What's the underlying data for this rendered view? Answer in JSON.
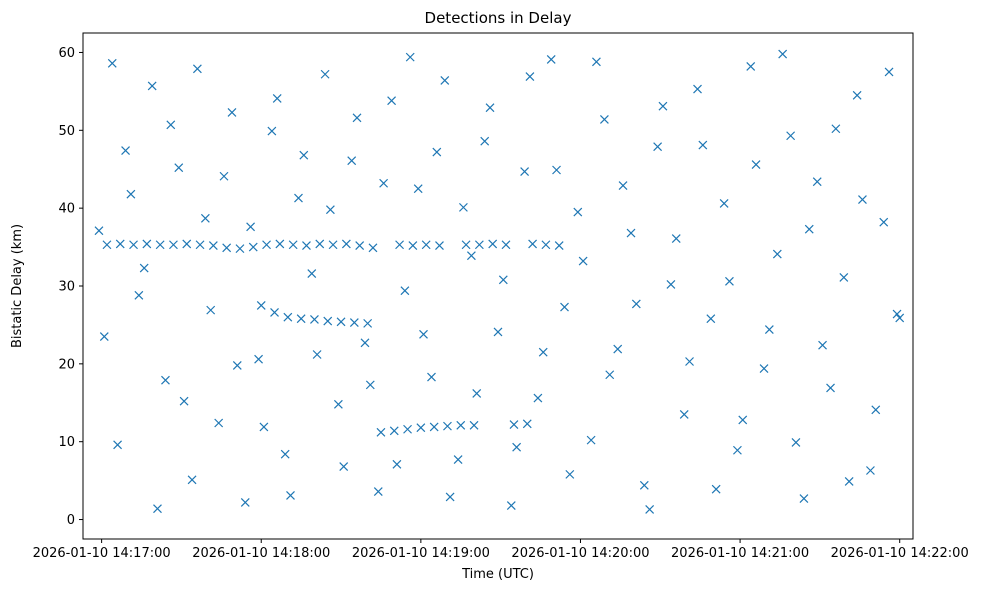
{
  "chart_data": {
    "type": "scatter",
    "title": "Detections in Delay",
    "xlabel": "Time (UTC)",
    "ylabel": "Bistatic Delay (km)",
    "x_tick_labels": [
      "2026-01-10 14:17:00",
      "2026-01-10 14:18:00",
      "2026-01-10 14:19:00",
      "2026-01-10 14:20:00",
      "2026-01-10 14:21:00",
      "2026-01-10 14:22:00"
    ],
    "xlim": [
      "2026-01-10 14:16:53",
      "2026-01-10 14:22:05"
    ],
    "y_ticks": [
      0,
      10,
      20,
      30,
      40,
      50,
      60
    ],
    "ylim": [
      -2.5,
      62.5
    ],
    "marker": "x",
    "marker_color": "#1f77b4",
    "grid": false,
    "series": [
      {
        "points": [
          [
            "2026-01-10 14:17:02",
            35.3
          ],
          [
            "2026-01-10 14:17:07",
            35.4
          ],
          [
            "2026-01-10 14:17:12",
            35.3
          ],
          [
            "2026-01-10 14:17:17",
            35.4
          ],
          [
            "2026-01-10 14:17:22",
            35.3
          ],
          [
            "2026-01-10 14:17:27",
            35.3
          ],
          [
            "2026-01-10 14:17:32",
            35.4
          ],
          [
            "2026-01-10 14:17:37",
            35.3
          ],
          [
            "2026-01-10 14:17:42",
            35.2
          ],
          [
            "2026-01-10 14:17:47",
            34.9
          ],
          [
            "2026-01-10 14:17:52",
            34.8
          ],
          [
            "2026-01-10 14:17:57",
            35.0
          ],
          [
            "2026-01-10 14:18:02",
            35.3
          ],
          [
            "2026-01-10 14:18:07",
            35.4
          ],
          [
            "2026-01-10 14:18:12",
            35.3
          ],
          [
            "2026-01-10 14:18:17",
            35.2
          ],
          [
            "2026-01-10 14:18:22",
            35.4
          ],
          [
            "2026-01-10 14:18:27",
            35.3
          ],
          [
            "2026-01-10 14:18:32",
            35.4
          ],
          [
            "2026-01-10 14:18:37",
            35.2
          ],
          [
            "2026-01-10 14:18:42",
            34.9
          ],
          [
            "2026-01-10 14:18:52",
            35.3
          ],
          [
            "2026-01-10 14:18:57",
            35.2
          ],
          [
            "2026-01-10 14:19:02",
            35.3
          ],
          [
            "2026-01-10 14:19:07",
            35.2
          ],
          [
            "2026-01-10 14:19:17",
            35.3
          ],
          [
            "2026-01-10 14:19:22",
            35.3
          ],
          [
            "2026-01-10 14:19:27",
            35.4
          ],
          [
            "2026-01-10 14:19:32",
            35.3
          ],
          [
            "2026-01-10 14:19:42",
            35.4
          ],
          [
            "2026-01-10 14:19:47",
            35.3
          ],
          [
            "2026-01-10 14:19:52",
            35.2
          ],
          [
            "2026-01-10 14:18:00",
            27.5
          ],
          [
            "2026-01-10 14:18:05",
            26.6
          ],
          [
            "2026-01-10 14:18:10",
            26.0
          ],
          [
            "2026-01-10 14:18:15",
            25.8
          ],
          [
            "2026-01-10 14:18:20",
            25.7
          ],
          [
            "2026-01-10 14:18:25",
            25.5
          ],
          [
            "2026-01-10 14:18:30",
            25.4
          ],
          [
            "2026-01-10 14:18:35",
            25.3
          ],
          [
            "2026-01-10 14:18:40",
            25.2
          ],
          [
            "2026-01-10 14:18:45",
            11.2
          ],
          [
            "2026-01-10 14:18:50",
            11.4
          ],
          [
            "2026-01-10 14:18:55",
            11.6
          ],
          [
            "2026-01-10 14:19:00",
            11.8
          ],
          [
            "2026-01-10 14:19:05",
            11.9
          ],
          [
            "2026-01-10 14:19:10",
            12.0
          ],
          [
            "2026-01-10 14:19:15",
            12.1
          ],
          [
            "2026-01-10 14:19:20",
            12.1
          ],
          [
            "2026-01-10 14:19:35",
            12.2
          ],
          [
            "2026-01-10 14:19:40",
            12.3
          ],
          [
            "2026-01-10 14:16:59",
            37.1
          ],
          [
            "2026-01-10 14:17:04",
            58.6
          ],
          [
            "2026-01-10 14:17:09",
            47.4
          ],
          [
            "2026-01-10 14:17:14",
            28.8
          ],
          [
            "2026-01-10 14:17:19",
            55.7
          ],
          [
            "2026-01-10 14:17:24",
            17.9
          ],
          [
            "2026-01-10 14:17:29",
            45.2
          ],
          [
            "2026-01-10 14:17:34",
            5.1
          ],
          [
            "2026-01-10 14:17:39",
            38.7
          ],
          [
            "2026-01-10 14:17:44",
            12.4
          ],
          [
            "2026-01-10 14:17:49",
            52.3
          ],
          [
            "2026-01-10 14:17:54",
            2.2
          ],
          [
            "2026-01-10 14:17:59",
            20.6
          ],
          [
            "2026-01-10 14:18:04",
            49.9
          ],
          [
            "2026-01-10 14:18:09",
            8.4
          ],
          [
            "2026-01-10 14:18:14",
            41.3
          ],
          [
            "2026-01-10 14:18:19",
            31.6
          ],
          [
            "2026-01-10 14:18:24",
            57.2
          ],
          [
            "2026-01-10 14:18:29",
            14.8
          ],
          [
            "2026-01-10 14:18:34",
            46.1
          ],
          [
            "2026-01-10 14:18:39",
            22.7
          ],
          [
            "2026-01-10 14:18:44",
            3.6
          ],
          [
            "2026-01-10 14:18:49",
            53.8
          ],
          [
            "2026-01-10 14:18:54",
            29.4
          ],
          [
            "2026-01-10 14:18:59",
            42.5
          ],
          [
            "2026-01-10 14:19:04",
            18.3
          ],
          [
            "2026-01-10 14:19:09",
            56.4
          ],
          [
            "2026-01-10 14:19:14",
            7.7
          ],
          [
            "2026-01-10 14:19:19",
            33.9
          ],
          [
            "2026-01-10 14:19:24",
            48.6
          ],
          [
            "2026-01-10 14:19:29",
            24.1
          ],
          [
            "2026-01-10 14:19:34",
            1.8
          ],
          [
            "2026-01-10 14:19:39",
            44.7
          ],
          [
            "2026-01-10 14:19:44",
            15.6
          ],
          [
            "2026-01-10 14:19:49",
            59.1
          ],
          [
            "2026-01-10 14:19:54",
            27.3
          ],
          [
            "2026-01-10 14:19:59",
            39.5
          ],
          [
            "2026-01-10 14:20:04",
            10.2
          ],
          [
            "2026-01-10 14:20:09",
            51.4
          ],
          [
            "2026-01-10 14:20:14",
            21.9
          ],
          [
            "2026-01-10 14:20:19",
            36.8
          ],
          [
            "2026-01-10 14:20:24",
            4.4
          ],
          [
            "2026-01-10 14:20:29",
            47.9
          ],
          [
            "2026-01-10 14:20:34",
            30.2
          ],
          [
            "2026-01-10 14:20:39",
            13.5
          ],
          [
            "2026-01-10 14:20:44",
            55.3
          ],
          [
            "2026-01-10 14:20:49",
            25.8
          ],
          [
            "2026-01-10 14:20:54",
            40.6
          ],
          [
            "2026-01-10 14:20:59",
            8.9
          ],
          [
            "2026-01-10 14:21:04",
            58.2
          ],
          [
            "2026-01-10 14:21:09",
            19.4
          ],
          [
            "2026-01-10 14:21:14",
            34.1
          ],
          [
            "2026-01-10 14:21:19",
            49.3
          ],
          [
            "2026-01-10 14:21:24",
            2.7
          ],
          [
            "2026-01-10 14:21:29",
            43.4
          ],
          [
            "2026-01-10 14:21:34",
            16.9
          ],
          [
            "2026-01-10 14:21:39",
            31.1
          ],
          [
            "2026-01-10 14:21:44",
            54.5
          ],
          [
            "2026-01-10 14:21:49",
            6.3
          ],
          [
            "2026-01-10 14:21:54",
            38.2
          ],
          [
            "2026-01-10 14:21:59",
            26.4
          ],
          [
            "2026-01-10 14:17:01",
            23.5
          ],
          [
            "2026-01-10 14:17:06",
            9.6
          ],
          [
            "2026-01-10 14:17:11",
            41.8
          ],
          [
            "2026-01-10 14:17:16",
            32.3
          ],
          [
            "2026-01-10 14:17:21",
            1.4
          ],
          [
            "2026-01-10 14:17:26",
            50.7
          ],
          [
            "2026-01-10 14:17:31",
            15.2
          ],
          [
            "2026-01-10 14:17:36",
            57.9
          ],
          [
            "2026-01-10 14:17:41",
            26.9
          ],
          [
            "2026-01-10 14:17:46",
            44.1
          ],
          [
            "2026-01-10 14:17:51",
            19.8
          ],
          [
            "2026-01-10 14:17:56",
            37.6
          ],
          [
            "2026-01-10 14:18:01",
            11.9
          ],
          [
            "2026-01-10 14:18:06",
            54.1
          ],
          [
            "2026-01-10 14:18:11",
            3.1
          ],
          [
            "2026-01-10 14:18:16",
            46.8
          ],
          [
            "2026-01-10 14:18:21",
            21.2
          ],
          [
            "2026-01-10 14:18:26",
            39.8
          ],
          [
            "2026-01-10 14:18:31",
            6.8
          ],
          [
            "2026-01-10 14:18:36",
            51.6
          ],
          [
            "2026-01-10 14:18:41",
            17.3
          ],
          [
            "2026-01-10 14:18:46",
            43.2
          ],
          [
            "2026-01-10 14:18:51",
            7.1
          ],
          [
            "2026-01-10 14:18:56",
            59.4
          ],
          [
            "2026-01-10 14:19:01",
            23.8
          ],
          [
            "2026-01-10 14:19:06",
            47.2
          ],
          [
            "2026-01-10 14:19:11",
            2.9
          ],
          [
            "2026-01-10 14:19:16",
            40.1
          ],
          [
            "2026-01-10 14:19:21",
            16.2
          ],
          [
            "2026-01-10 14:19:26",
            52.9
          ],
          [
            "2026-01-10 14:19:31",
            30.8
          ],
          [
            "2026-01-10 14:19:36",
            9.3
          ],
          [
            "2026-01-10 14:19:41",
            56.9
          ],
          [
            "2026-01-10 14:19:46",
            21.5
          ],
          [
            "2026-01-10 14:19:51",
            44.9
          ],
          [
            "2026-01-10 14:19:56",
            5.8
          ],
          [
            "2026-01-10 14:20:01",
            33.2
          ],
          [
            "2026-01-10 14:20:06",
            58.8
          ],
          [
            "2026-01-10 14:20:11",
            18.6
          ],
          [
            "2026-01-10 14:20:16",
            42.9
          ],
          [
            "2026-01-10 14:20:21",
            27.7
          ],
          [
            "2026-01-10 14:20:26",
            1.3
          ],
          [
            "2026-01-10 14:20:31",
            53.1
          ],
          [
            "2026-01-10 14:20:36",
            36.1
          ],
          [
            "2026-01-10 14:20:41",
            20.3
          ],
          [
            "2026-01-10 14:20:46",
            48.1
          ],
          [
            "2026-01-10 14:20:51",
            3.9
          ],
          [
            "2026-01-10 14:20:56",
            30.6
          ],
          [
            "2026-01-10 14:21:01",
            12.8
          ],
          [
            "2026-01-10 14:21:06",
            45.6
          ],
          [
            "2026-01-10 14:21:11",
            24.4
          ],
          [
            "2026-01-10 14:21:16",
            59.8
          ],
          [
            "2026-01-10 14:21:21",
            9.9
          ],
          [
            "2026-01-10 14:21:26",
            37.3
          ],
          [
            "2026-01-10 14:21:31",
            22.4
          ],
          [
            "2026-01-10 14:21:36",
            50.2
          ],
          [
            "2026-01-10 14:21:41",
            4.9
          ],
          [
            "2026-01-10 14:21:46",
            41.1
          ],
          [
            "2026-01-10 14:21:51",
            14.1
          ],
          [
            "2026-01-10 14:21:56",
            57.5
          ],
          [
            "2026-01-10 14:22:00",
            25.9
          ]
        ]
      }
    ]
  }
}
